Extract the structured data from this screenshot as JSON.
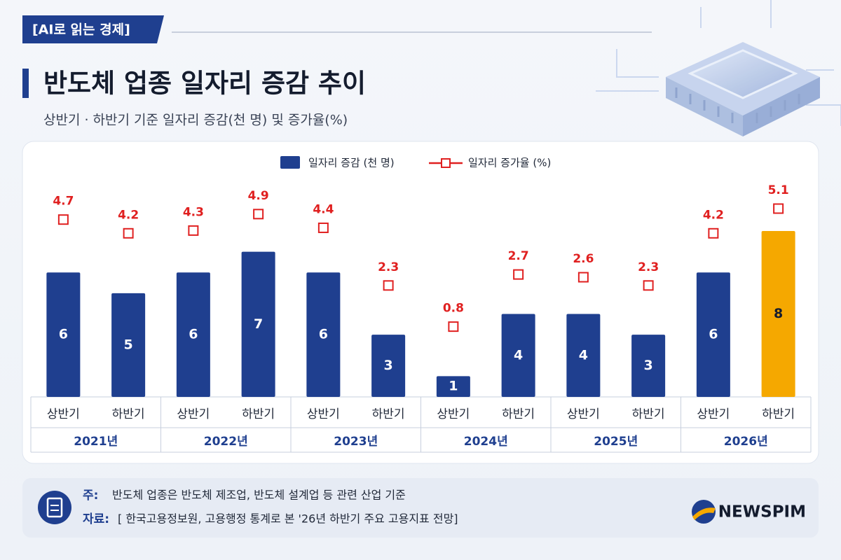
{
  "header": {
    "tag": "[AI로 읽는 경제]",
    "title": "반도체 업종 일자리 증감 추이",
    "subtitle": "상반기 · 하반기 기준 일자리 증감(천 명) 및 증가율(%)"
  },
  "chart_data": {
    "type": "combo",
    "categories": [
      "상반기",
      "하반기",
      "상반기",
      "하반기",
      "상반기",
      "하반기",
      "상반기",
      "하반기",
      "상반기",
      "하반기",
      "상반기",
      "하반기"
    ],
    "groups": [
      "2021년",
      "2022년",
      "2023년",
      "2024년",
      "2025년",
      "2026년"
    ],
    "series": [
      {
        "name": "일자리 증감 (천 명)",
        "type": "bar",
        "color": "#1f3f8f",
        "colors": [
          "#1f3f8f",
          "#1f3f8f",
          "#1f3f8f",
          "#1f3f8f",
          "#1f3f8f",
          "#1f3f8f",
          "#1f3f8f",
          "#1f3f8f",
          "#1f3f8f",
          "#1f3f8f",
          "#1f3f8f",
          "#f5a800"
        ],
        "values": [
          6,
          5,
          6,
          7,
          6,
          3,
          1,
          4,
          4,
          3,
          6,
          8
        ]
      },
      {
        "name": "일자리 증가율 (%)",
        "type": "line",
        "axis": "y2",
        "color": "#e02020",
        "marker": "square",
        "values": [
          4.7,
          4.2,
          4.3,
          4.9,
          4.4,
          2.3,
          0.8,
          2.7,
          2.6,
          2.3,
          4.2,
          5.1
        ]
      }
    ],
    "legend": "top"
  },
  "footer": {
    "note_label": "주:",
    "note": "반도체 업종은 반도체 제조업, 반도체 설계업 등 관련 산업 기준",
    "source_label": "자료:",
    "source": "[ 한국고용정보원, 고용행정 통계로 본 '26년 하반기 주요 고용지표 전망]",
    "logo": "NEWSPIM"
  }
}
